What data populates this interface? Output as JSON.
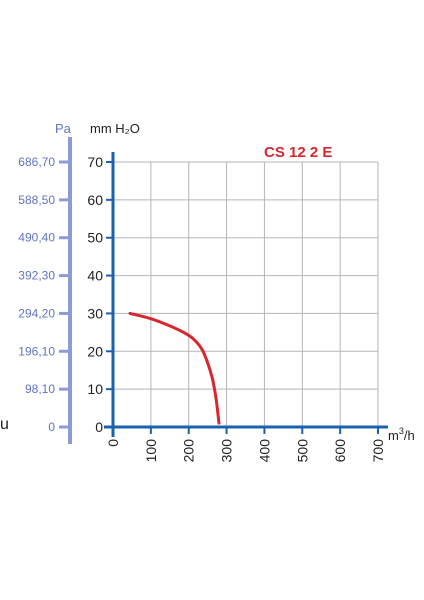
{
  "chart_data": {
    "type": "line",
    "title": "CS 12 2 E",
    "xlabel": "m³/h",
    "xlabel_base": "m",
    "xlabel_sup": "3",
    "xlabel_tail": "/h",
    "ylabel": "mm H₂O",
    "ylabel_secondary": "Pa",
    "stray_text": "u",
    "x_ticks": [
      "0",
      "100",
      "200",
      "300",
      "400",
      "500",
      "600",
      "700"
    ],
    "y_ticks": [
      "0",
      "10",
      "20",
      "30",
      "40",
      "50",
      "60",
      "70"
    ],
    "pa_ticks": [
      "0",
      "98,10",
      "196,10",
      "294,20",
      "392,30",
      "490,40",
      "588,50",
      "686,70"
    ],
    "xlim": [
      0,
      700
    ],
    "ylim": [
      0,
      70
    ],
    "grid": true,
    "series": [
      {
        "x": [
          45,
          100,
          150,
          190,
          215,
          235,
          250,
          262,
          270,
          276,
          280
        ],
        "y": [
          30,
          28.6,
          26.7,
          24.8,
          23,
          20.5,
          17,
          13,
          9,
          4.5,
          1
        ]
      }
    ],
    "colors": {
      "curve": "#d7262d",
      "axis": "#1862b0",
      "pa_axis": "#8b9bd6",
      "grid": "#b5b5b5",
      "title": "#d7262d",
      "text": "#222222",
      "pa_label": "#5f74c2"
    }
  }
}
